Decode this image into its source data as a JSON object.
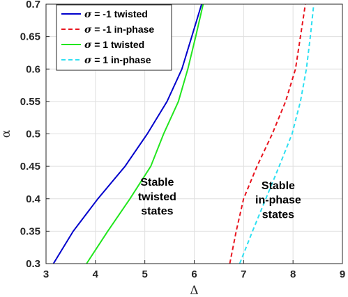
{
  "chart_data": {
    "type": "line",
    "xlabel": "Δ",
    "ylabel": "α",
    "xlim": [
      3,
      9
    ],
    "ylim": [
      0.3,
      0.7
    ],
    "xticks": [
      3,
      4,
      5,
      6,
      7,
      8,
      9
    ],
    "yticks": [
      0.3,
      0.35,
      0.4,
      0.45,
      0.5,
      0.55,
      0.6,
      0.65,
      0.7
    ],
    "ytick_labels": [
      "0.3",
      "0.35",
      "0.4",
      "0.45",
      "0.5",
      "0.55",
      "0.6",
      "0.65",
      "0.7"
    ],
    "grid": true,
    "legend_position": "top-left",
    "series": [
      {
        "name_symbol": "σ",
        "name_rest": " = -1 twisted",
        "color": "#0000cc",
        "style": "solid",
        "points": [
          [
            3.15,
            0.3
          ],
          [
            3.55,
            0.35
          ],
          [
            4.05,
            0.4
          ],
          [
            4.6,
            0.45
          ],
          [
            5.05,
            0.5
          ],
          [
            5.45,
            0.55
          ],
          [
            5.75,
            0.6
          ],
          [
            5.95,
            0.65
          ],
          [
            6.15,
            0.7
          ]
        ]
      },
      {
        "name_symbol": "σ",
        "name_rest": " = -1 in-phase",
        "color": "#e8141e",
        "style": "dashed",
        "points": [
          [
            6.72,
            0.3
          ],
          [
            6.85,
            0.35
          ],
          [
            7.0,
            0.4
          ],
          [
            7.27,
            0.45
          ],
          [
            7.58,
            0.5
          ],
          [
            7.85,
            0.55
          ],
          [
            8.05,
            0.6
          ],
          [
            8.15,
            0.65
          ],
          [
            8.25,
            0.7
          ]
        ]
      },
      {
        "name_symbol": "σ",
        "name_rest": " = 1 twisted",
        "color": "#22e61e",
        "style": "solid",
        "points": [
          [
            3.82,
            0.3
          ],
          [
            4.25,
            0.35
          ],
          [
            4.7,
            0.4
          ],
          [
            5.12,
            0.45
          ],
          [
            5.38,
            0.5
          ],
          [
            5.68,
            0.55
          ],
          [
            5.87,
            0.6
          ],
          [
            6.03,
            0.65
          ],
          [
            6.18,
            0.7
          ]
        ]
      },
      {
        "name_symbol": "σ",
        "name_rest": " = 1 in-phase",
        "color": "#2ee0f2",
        "style": "dashed",
        "points": [
          [
            6.92,
            0.3
          ],
          [
            7.18,
            0.35
          ],
          [
            7.45,
            0.4
          ],
          [
            7.72,
            0.45
          ],
          [
            7.98,
            0.5
          ],
          [
            8.15,
            0.55
          ],
          [
            8.27,
            0.6
          ],
          [
            8.35,
            0.65
          ],
          [
            8.42,
            0.7
          ]
        ]
      }
    ],
    "annotations": [
      {
        "lines": [
          "Stable",
          "twisted",
          "states"
        ],
        "x": 5.25,
        "y": 0.42
      },
      {
        "lines": [
          "Stable",
          "in-phase",
          "states"
        ],
        "x": 7.7,
        "y": 0.415
      }
    ]
  }
}
